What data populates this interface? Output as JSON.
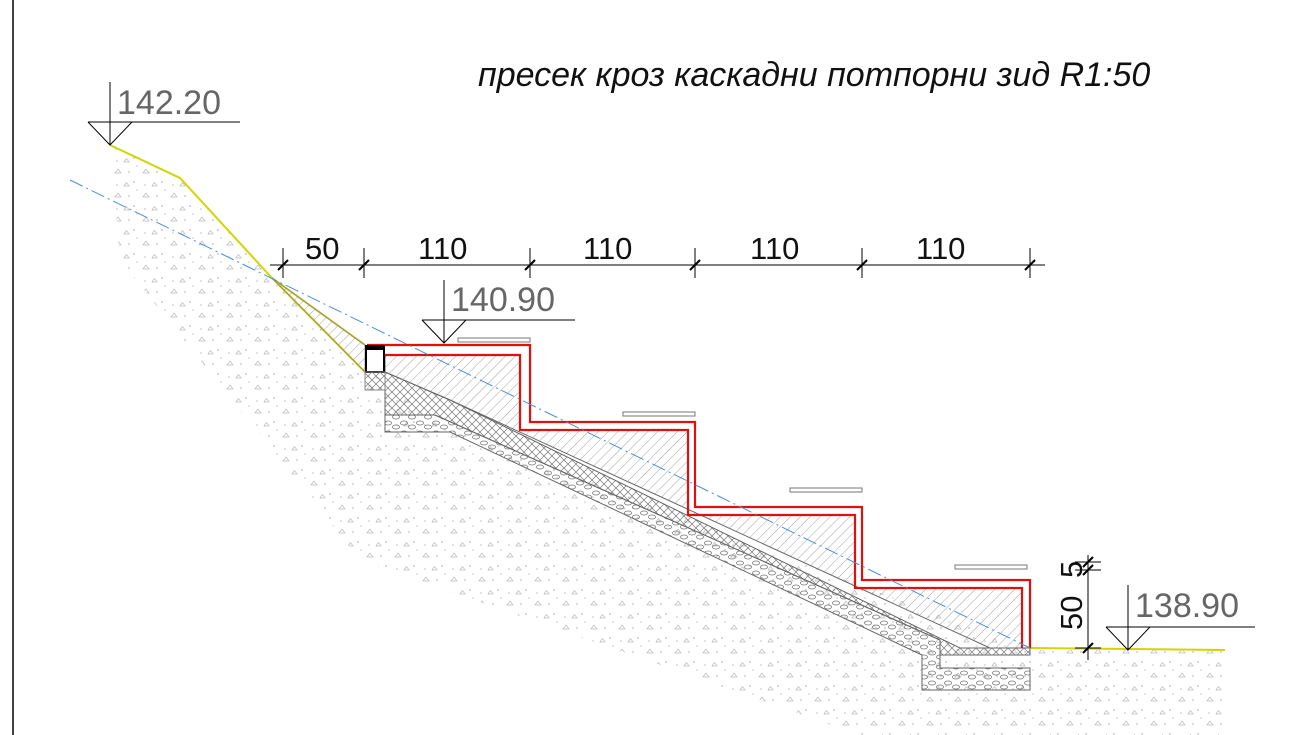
{
  "title": "пресек кроз каскадни потпорни зид R1:50",
  "levels": {
    "top": "142.20",
    "mid": "140.90",
    "bottom": "138.90"
  },
  "dimensions": {
    "d1": "50",
    "d2": "110",
    "d3": "110",
    "d4": "110",
    "d5": "110",
    "vertical_big": "50",
    "vertical_small": "5"
  },
  "colors": {
    "terrain": "#d4d400",
    "waterproofing": "#e01010",
    "axis": "#4a90d9",
    "concrete": "#8a8a8a",
    "line": "#000000"
  }
}
